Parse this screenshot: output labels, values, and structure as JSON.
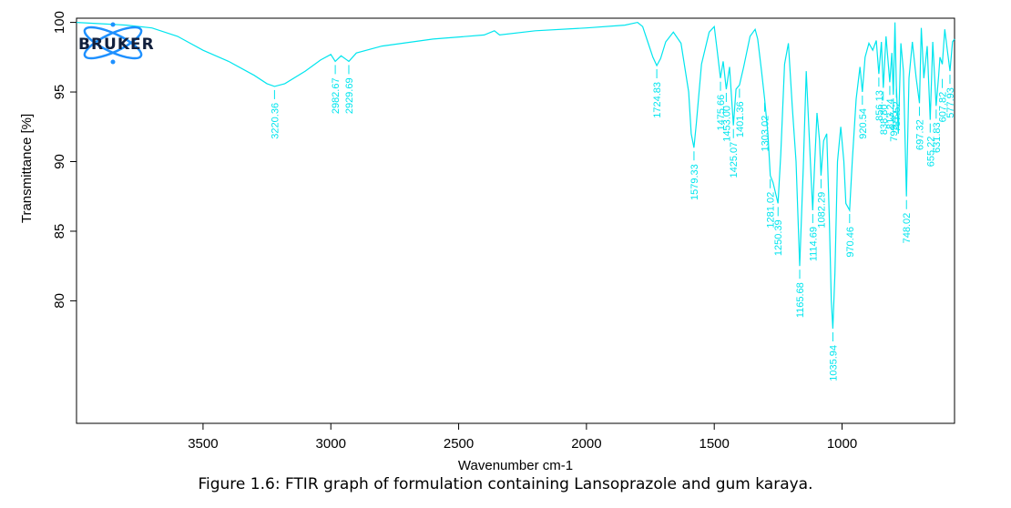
{
  "caption": "Figure 1.6: FTIR graph of formulation containing Lansoprazole and gum karaya.",
  "logo": {
    "text": "BRUKER",
    "color": "#1e90ff",
    "name": "bruker-logo"
  },
  "colors": {
    "line": "#00e5ee",
    "axis": "#000000"
  },
  "chart_data": {
    "type": "line",
    "xlabel": "Wavenumber cm-1",
    "ylabel": "Transmittance [%]",
    "xlim": [
      3995,
      560
    ],
    "ylim": [
      71.2,
      100.3
    ],
    "x_reversed": true,
    "xticks": [
      3500,
      3000,
      2500,
      2000,
      1500,
      1000
    ],
    "yticks": [
      80,
      85,
      90,
      95,
      100
    ],
    "series": [
      {
        "values_x": [
          3995,
          3800,
          3700,
          3600,
          3500,
          3400,
          3300,
          3250,
          3220.36,
          3180,
          3100,
          3040,
          3000,
          2982.67,
          2960,
          2929.69,
          2900,
          2800,
          2600,
          2400,
          2360,
          2340,
          2200,
          2000,
          1850,
          1800,
          1780,
          1760,
          1740,
          1724.83,
          1710,
          1690,
          1660,
          1630,
          1600,
          1590,
          1579.33,
          1570,
          1550,
          1520,
          1500,
          1490,
          1475.66,
          1465,
          1453.0,
          1440,
          1425.07,
          1415,
          1401.36,
          1385,
          1360,
          1340,
          1330,
          1315,
          1303.02,
          1290,
          1281.02,
          1270,
          1250.39,
          1240,
          1225,
          1210,
          1195,
          1180,
          1165.68,
          1152,
          1140,
          1130,
          1120,
          1114.69,
          1108,
          1098,
          1088,
          1082.29,
          1072,
          1060,
          1050,
          1042,
          1035.94,
          1028,
          1018,
          1005,
          993,
          985,
          970.46,
          960,
          945,
          930,
          920.54,
          910,
          895,
          880,
          866,
          856.13,
          846,
          838.8,
          828,
          813.24,
          805,
          799.45,
          793,
          787.52,
          780,
          770,
          760,
          748.02,
          738,
          725,
          710,
          697.32,
          690,
          680,
          667,
          655.22,
          645,
          631.83,
          622,
          617,
          607.82,
          598,
          588,
          577.93,
          568,
          560
        ],
        "values_y": [
          100,
          99.8,
          99.6,
          99.0,
          98.0,
          97.2,
          96.2,
          95.6,
          95.4,
          95.6,
          96.5,
          97.3,
          97.7,
          97.2,
          97.6,
          97.2,
          97.8,
          98.3,
          98.8,
          99.1,
          99.4,
          99.1,
          99.4,
          99.6,
          99.8,
          100,
          99.7,
          98.6,
          97.5,
          96.9,
          97.4,
          98.6,
          99.3,
          98.5,
          95.0,
          92.0,
          91.0,
          92.8,
          97.0,
          99.3,
          99.7,
          98.2,
          96.0,
          97.2,
          95.2,
          96.8,
          92.6,
          95.2,
          95.5,
          96.8,
          99.0,
          99.5,
          98.8,
          96.5,
          94.5,
          92.0,
          89.0,
          88.5,
          87.0,
          90.5,
          97.0,
          98.5,
          94.0,
          90.0,
          82.5,
          89.5,
          96.5,
          92.5,
          88.5,
          86.5,
          89.5,
          93.5,
          91.5,
          89.0,
          91.5,
          92.0,
          86.0,
          80.0,
          78.0,
          82.0,
          90.0,
          92.5,
          90.0,
          87.0,
          86.5,
          90.0,
          94.5,
          96.8,
          95.0,
          97.5,
          98.5,
          98.0,
          98.7,
          96.3,
          98.6,
          95.3,
          99.0,
          95.7,
          97.8,
          94.8,
          100.0,
          95.5,
          92.0,
          98.5,
          96.5,
          87.5,
          96.0,
          98.6,
          96.0,
          94.2,
          99.6,
          96.0,
          98.3,
          93.0,
          98.6,
          94.0,
          96.2,
          97.5,
          97.0,
          99.5,
          98.0,
          96.5,
          98.6,
          98.8
        ],
        "peaks": [
          {
            "x": 3220.36,
            "y": 95.4,
            "label": "3220.36"
          },
          {
            "x": 2982.67,
            "y": 97.2,
            "label": "2982.67"
          },
          {
            "x": 2929.69,
            "y": 97.2,
            "label": "2929.69"
          },
          {
            "x": 1724.83,
            "y": 96.9,
            "label": "1724.83"
          },
          {
            "x": 1579.33,
            "y": 91.0,
            "label": "1579.33"
          },
          {
            "x": 1475.66,
            "y": 96.0,
            "label": "1475.66"
          },
          {
            "x": 1453.0,
            "y": 95.2,
            "label": "1453.00"
          },
          {
            "x": 1425.07,
            "y": 92.6,
            "label": "1425.07"
          },
          {
            "x": 1401.36,
            "y": 95.5,
            "label": "1401.36"
          },
          {
            "x": 1303.02,
            "y": 94.5,
            "label": "1303.02"
          },
          {
            "x": 1281.02,
            "y": 89.0,
            "label": "1281.02"
          },
          {
            "x": 1250.39,
            "y": 87.0,
            "label": "1250.39"
          },
          {
            "x": 1165.68,
            "y": 82.5,
            "label": "1165.68"
          },
          {
            "x": 1114.69,
            "y": 86.5,
            "label": "1114.69"
          },
          {
            "x": 1082.29,
            "y": 89.0,
            "label": "1082.29"
          },
          {
            "x": 1035.94,
            "y": 78.0,
            "label": "1035.94"
          },
          {
            "x": 970.46,
            "y": 86.5,
            "label": "970.46"
          },
          {
            "x": 920.54,
            "y": 95.0,
            "label": "920.54"
          },
          {
            "x": 856.13,
            "y": 96.3,
            "label": "856.13"
          },
          {
            "x": 838.8,
            "y": 95.3,
            "label": "838.80"
          },
          {
            "x": 813.24,
            "y": 95.7,
            "label": "813.24"
          },
          {
            "x": 799.45,
            "y": 94.8,
            "label": "799.45"
          },
          {
            "x": 787.52,
            "y": 95.5,
            "label": "787.52"
          },
          {
            "x": 748.02,
            "y": 87.5,
            "label": "748.02"
          },
          {
            "x": 697.32,
            "y": 94.2,
            "label": "697.32"
          },
          {
            "x": 655.22,
            "y": 93.0,
            "label": "655.22"
          },
          {
            "x": 631.83,
            "y": 94.0,
            "label": "631.83"
          },
          {
            "x": 607.82,
            "y": 96.2,
            "label": "607.82"
          },
          {
            "x": 577.93,
            "y": 96.5,
            "label": "577.93"
          }
        ]
      }
    ]
  }
}
